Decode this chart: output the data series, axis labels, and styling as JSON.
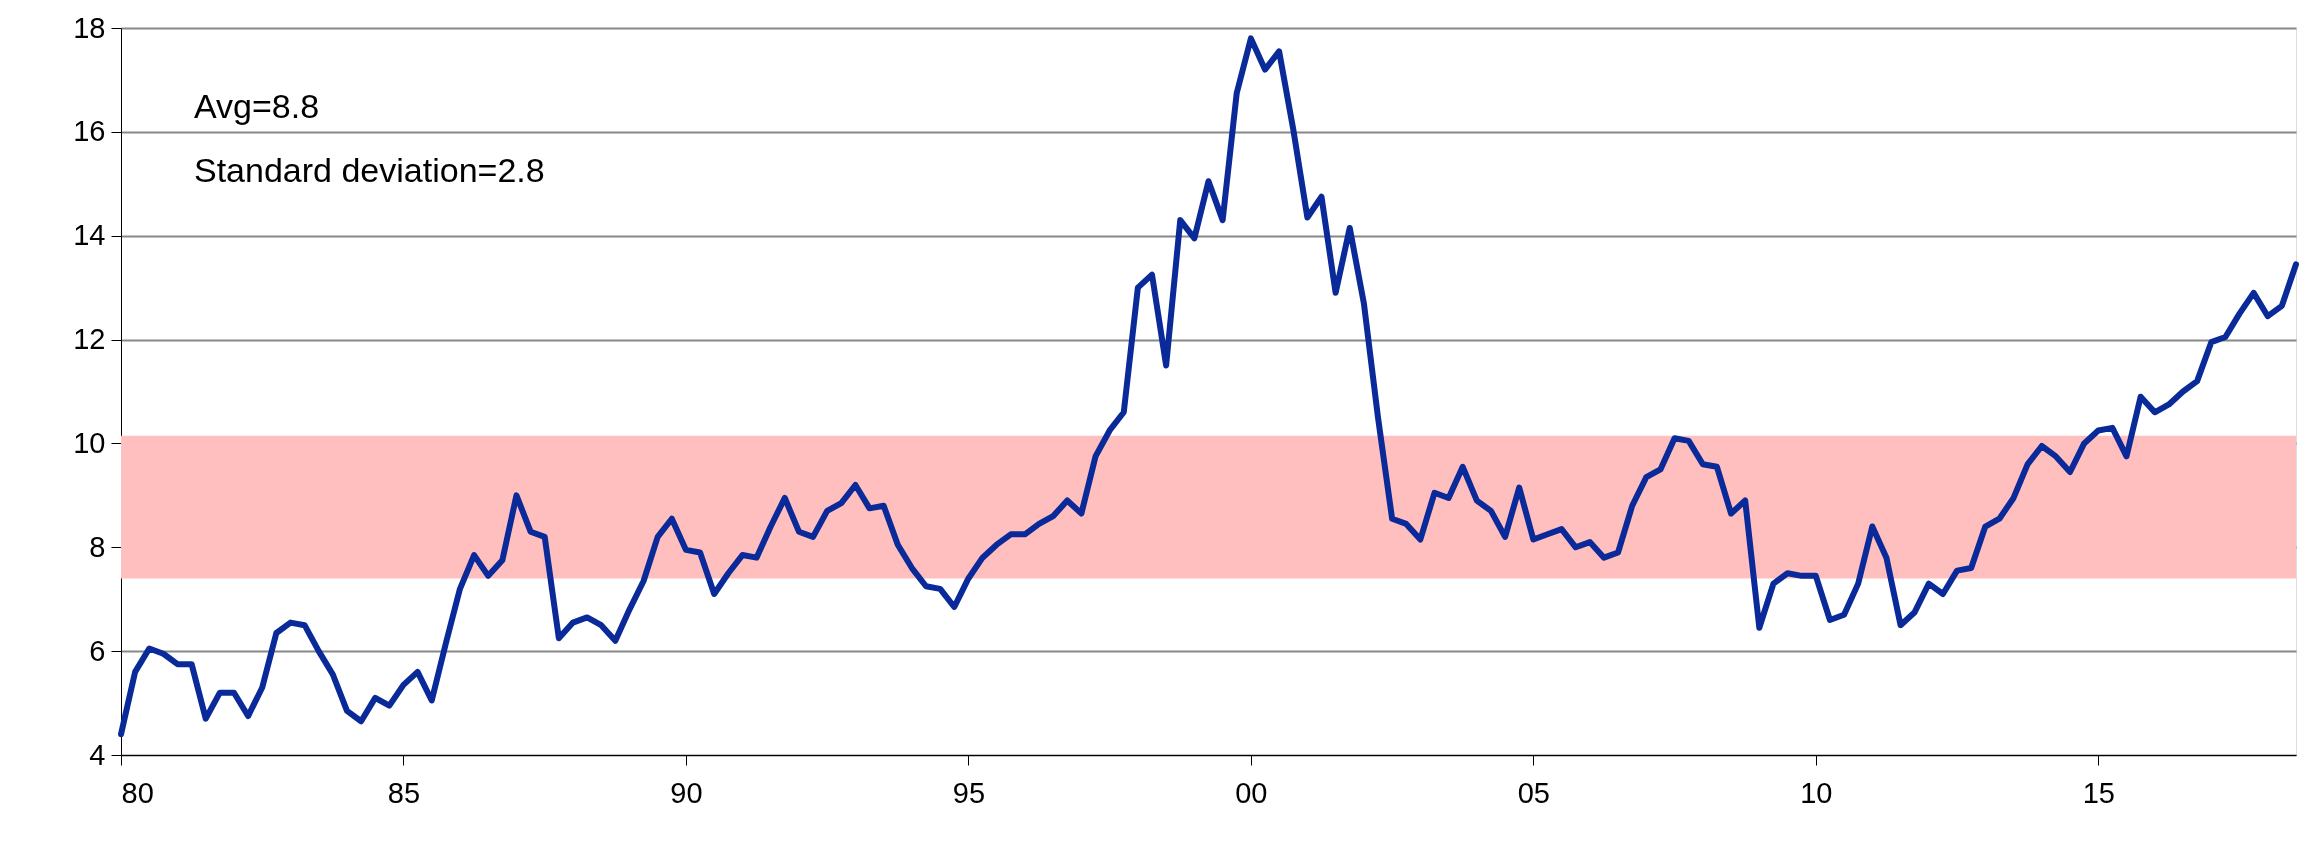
{
  "chart_data": {
    "type": "line",
    "x": [
      1980,
      1980.25,
      1980.5,
      1980.75,
      1981,
      1981.25,
      1981.5,
      1981.75,
      1982,
      1982.25,
      1982.5,
      1982.75,
      1983,
      1983.25,
      1983.5,
      1983.75,
      1984,
      1984.25,
      1984.5,
      1984.75,
      1985,
      1985.25,
      1985.5,
      1985.75,
      1986,
      1986.25,
      1986.5,
      1986.75,
      1987,
      1987.25,
      1987.5,
      1987.75,
      1988,
      1988.25,
      1988.5,
      1988.75,
      1989,
      1989.25,
      1989.5,
      1989.75,
      1990,
      1990.25,
      1990.5,
      1990.75,
      1991,
      1991.25,
      1991.5,
      1991.75,
      1992,
      1992.25,
      1992.5,
      1992.75,
      1993,
      1993.25,
      1993.5,
      1993.75,
      1994,
      1994.25,
      1994.5,
      1994.75,
      1995,
      1995.25,
      1995.5,
      1995.75,
      1996,
      1996.25,
      1996.5,
      1996.75,
      1997,
      1997.25,
      1997.5,
      1997.75,
      1998,
      1998.25,
      1998.5,
      1998.75,
      1999,
      1999.25,
      1999.5,
      1999.75,
      2000,
      2000.25,
      2000.5,
      2000.75,
      2001,
      2001.25,
      2001.5,
      2001.75,
      2002,
      2002.25,
      2002.5,
      2002.75,
      2003,
      2003.25,
      2003.5,
      2003.75,
      2004,
      2004.25,
      2004.5,
      2004.75,
      2005,
      2005.25,
      2005.5,
      2005.75,
      2006,
      2006.25,
      2006.5,
      2006.75,
      2007,
      2007.25,
      2007.5,
      2007.75,
      2008,
      2008.25,
      2008.5,
      2008.75,
      2009,
      2009.25,
      2009.5,
      2009.75,
      2010,
      2010.25,
      2010.5,
      2010.75,
      2011,
      2011.25,
      2011.5,
      2011.75,
      2012,
      2012.25,
      2012.5,
      2012.75,
      2013,
      2013.25,
      2013.5,
      2013.75,
      2014,
      2014.25,
      2014.5,
      2014.75,
      2015,
      2015.25,
      2015.5,
      2015.75,
      2016,
      2016.25,
      2016.5,
      2016.75,
      2017,
      2017.25,
      2017.5,
      2017.75,
      2018,
      2018.25,
      2018.5
    ],
    "series": [
      {
        "color": "#0a2a9a",
        "values": [
          4.4,
          5.6,
          6.05,
          5.95,
          5.75,
          5.75,
          4.7,
          5.2,
          5.2,
          4.75,
          5.3,
          6.35,
          6.55,
          6.5,
          6.0,
          5.55,
          4.85,
          4.65,
          5.1,
          4.95,
          5.35,
          5.6,
          5.05,
          6.15,
          7.2,
          7.85,
          7.45,
          7.75,
          9.0,
          8.3,
          8.2,
          6.25,
          6.55,
          6.65,
          6.5,
          6.2,
          6.8,
          7.35,
          8.2,
          8.55,
          7.95,
          7.9,
          7.1,
          7.5,
          7.85,
          7.8,
          8.4,
          8.95,
          8.3,
          8.2,
          8.7,
          8.85,
          9.2,
          8.75,
          8.8,
          8.05,
          7.6,
          7.25,
          7.2,
          6.85,
          7.4,
          7.8,
          8.05,
          8.25,
          8.25,
          8.45,
          8.6,
          8.9,
          8.65,
          9.75,
          10.25,
          10.6,
          13.0,
          13.25,
          11.5,
          14.3,
          13.95,
          15.05,
          14.3,
          16.75,
          17.8,
          17.2,
          17.55,
          16.05,
          14.35,
          14.75,
          12.9,
          14.15,
          12.7,
          10.5,
          8.55,
          8.45,
          8.15,
          9.05,
          8.95,
          9.55,
          8.9,
          8.7,
          8.2,
          9.15,
          8.15,
          8.25,
          8.35,
          8.0,
          8.1,
          7.8,
          7.9,
          8.8,
          9.35,
          9.5,
          10.1,
          10.05,
          9.6,
          9.55,
          8.65,
          8.9,
          6.45,
          7.3,
          7.5,
          7.45,
          7.45,
          6.6,
          6.7,
          7.3,
          8.4,
          7.8,
          6.5,
          6.75,
          7.3,
          7.1,
          7.55,
          7.6,
          8.4,
          8.55,
          8.95,
          9.6,
          9.95,
          9.75,
          9.45,
          10.0,
          10.25,
          10.3,
          9.75,
          10.9,
          10.6,
          10.75,
          11.0,
          11.2,
          11.95,
          12.05,
          12.5,
          12.9,
          12.45,
          12.65,
          13.45
        ]
      }
    ],
    "xlim": [
      1980,
      2018.5
    ],
    "xticks": [
      {
        "value": 1980,
        "label": "80"
      },
      {
        "value": 1985,
        "label": "85"
      },
      {
        "value": 1990,
        "label": "90"
      },
      {
        "value": 1995,
        "label": "95"
      },
      {
        "value": 2000,
        "label": "00"
      },
      {
        "value": 2005,
        "label": "05"
      },
      {
        "value": 2010,
        "label": "10"
      },
      {
        "value": 2015,
        "label": "15"
      }
    ],
    "ylim": [
      4,
      18
    ],
    "yticks": [
      4,
      6,
      8,
      10,
      12,
      14,
      16,
      18
    ],
    "grid": "y",
    "bands": [
      {
        "axis": "y",
        "from": 7.4,
        "to": 10.15,
        "color": "#ffbfbf"
      }
    ],
    "annotations": [
      "Avg=8.8",
      "Standard deviation=2.8"
    ]
  }
}
